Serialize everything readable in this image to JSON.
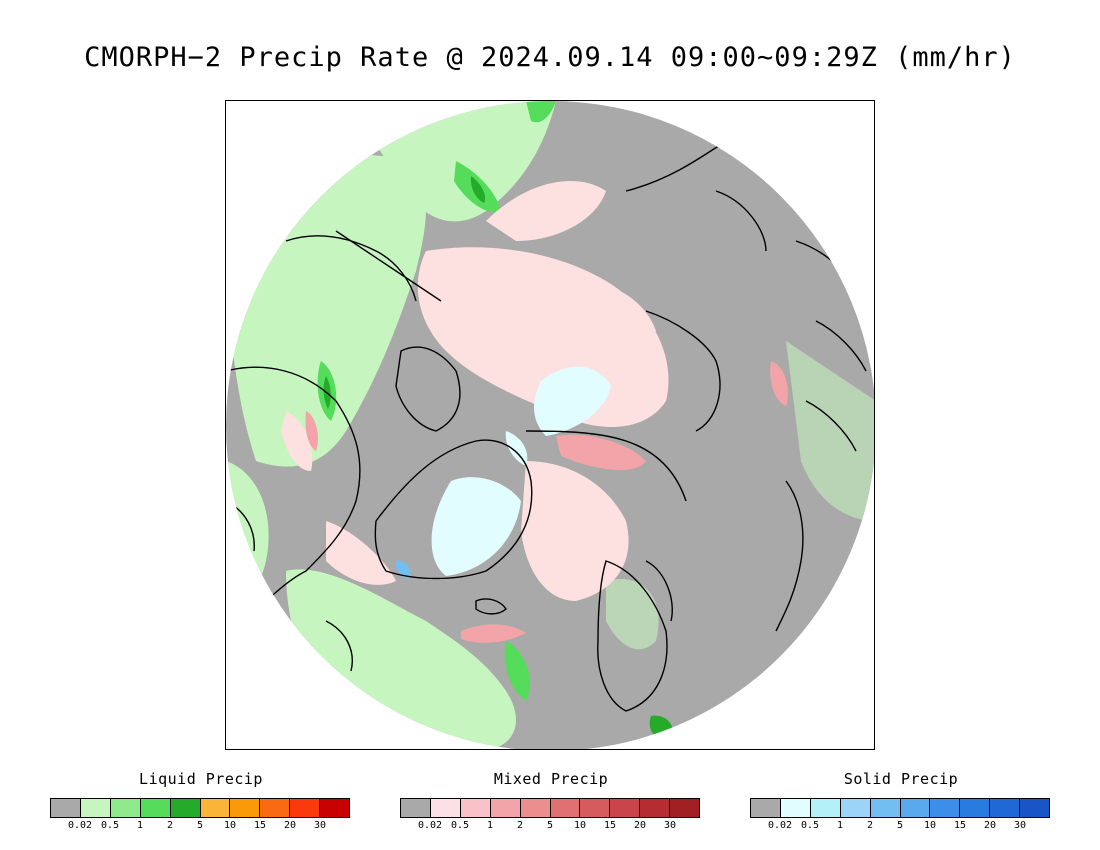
{
  "title": "CMORPH−2 Precip Rate @ 2024.09.14 09:00~09:29Z (mm/hr)",
  "colors": {
    "no_precip": "#a9a9a9",
    "ocean_liquid": "#c7f5c0",
    "ocean_mixed": "#fde0e0",
    "land_outline": "#000000"
  },
  "legends": [
    {
      "title": "Liquid Precip",
      "colors": [
        "#a9a9a9",
        "#c7f5c0",
        "#8ee98a",
        "#55dc5a",
        "#25aa2a",
        "#fbb43a",
        "#fa9a09",
        "#fa6a12",
        "#fa3a0d",
        "#c90000"
      ],
      "ticks": [
        "0.02",
        "0.5",
        "1",
        "2",
        "5",
        "10",
        "15",
        "20",
        "30"
      ]
    },
    {
      "title": "Mixed Precip",
      "colors": [
        "#a9a9a9",
        "#fde0e6",
        "#f8c2c8",
        "#f2a4a8",
        "#ec8d8e",
        "#e07072",
        "#d65b5f",
        "#c9454b",
        "#b52d33",
        "#a02024"
      ],
      "ticks": [
        "0.02",
        "0.5",
        "1",
        "2",
        "5",
        "10",
        "15",
        "20",
        "30"
      ]
    },
    {
      "title": "Solid Precip",
      "colors": [
        "#a9a9a9",
        "#e2fdff",
        "#b4f0f8",
        "#9bd4f6",
        "#72bef2",
        "#5aa8ed",
        "#3d8ee8",
        "#2a7be0",
        "#1f68d6",
        "#1a55c8"
      ],
      "ticks": [
        "0.02",
        "0.5",
        "1",
        "2",
        "5",
        "10",
        "15",
        "20",
        "30"
      ]
    }
  ]
}
